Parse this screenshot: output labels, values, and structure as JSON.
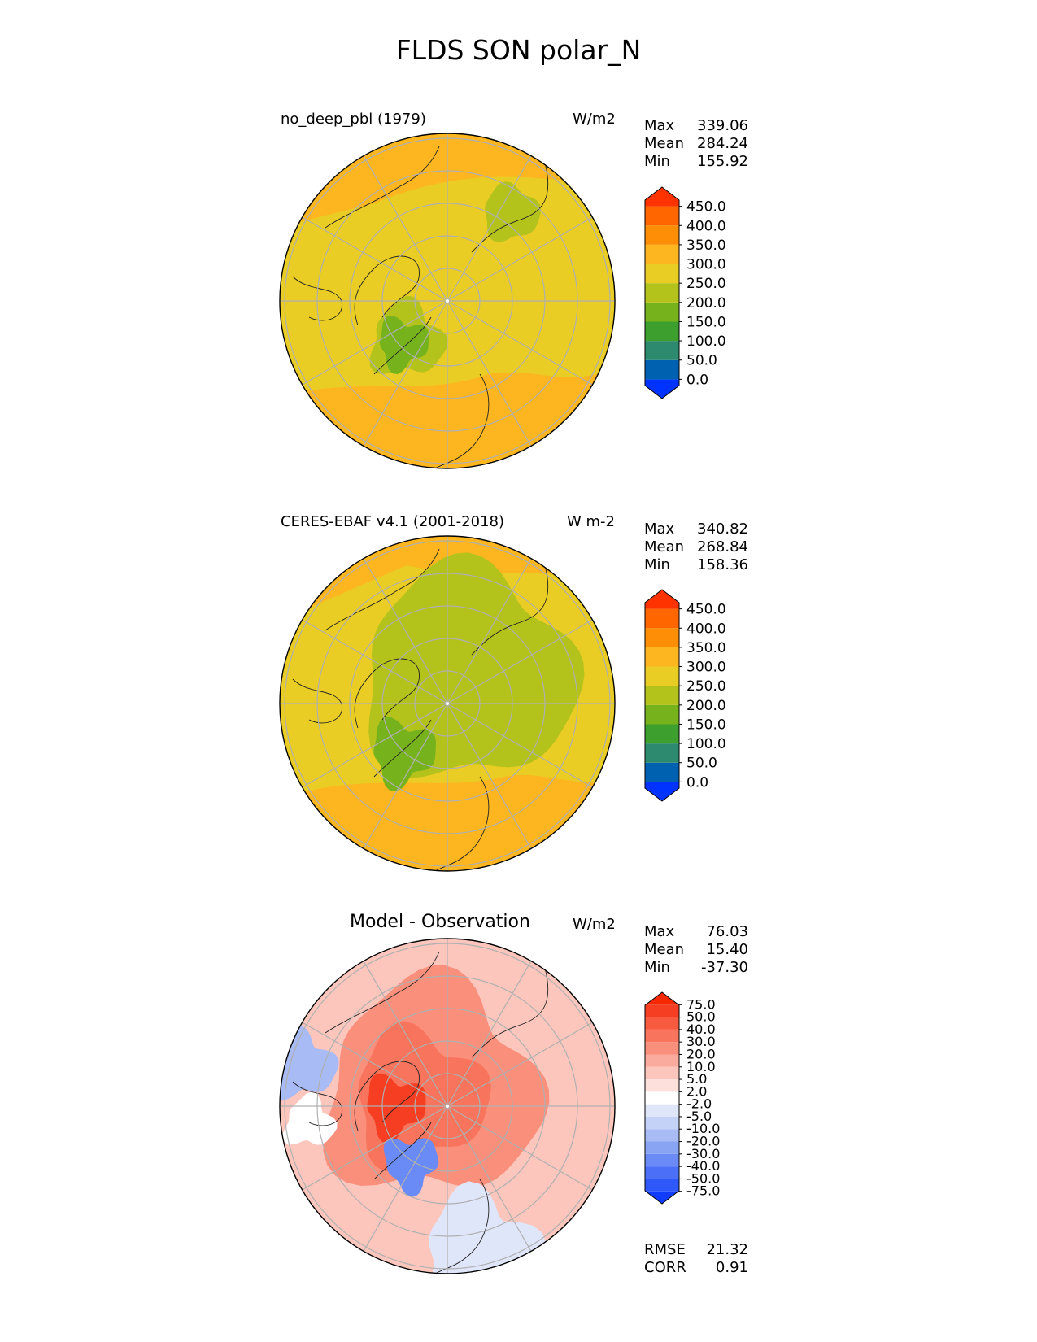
{
  "title": "FLDS SON polar_N",
  "chart_data": [
    {
      "type": "heatmap",
      "title": "no_deep_pbl (1979)",
      "units": "W/m2",
      "stats": [
        {
          "label": "Max",
          "value": "339.06"
        },
        {
          "label": "Mean",
          "value": "284.24"
        },
        {
          "label": "Min",
          "value": "155.92"
        }
      ],
      "colorbar": {
        "levels": [
          "0.0",
          "50.0",
          "100.0",
          "150.0",
          "200.0",
          "250.0",
          "300.0",
          "350.0",
          "400.0",
          "450.0"
        ],
        "colors": [
          "#0033ff",
          "#0061b0",
          "#2e8a6e",
          "#3da02e",
          "#76b21c",
          "#b4c21c",
          "#e9cd24",
          "#fdb620",
          "#fe8e05",
          "#ff6600",
          "#ff3300"
        ],
        "extend": "both"
      }
    },
    {
      "type": "heatmap",
      "title": "CERES-EBAF v4.1 (2001-2018)",
      "units": "W m-2",
      "stats": [
        {
          "label": "Max",
          "value": "340.82"
        },
        {
          "label": "Mean",
          "value": "268.84"
        },
        {
          "label": "Min",
          "value": "158.36"
        }
      ],
      "colorbar": {
        "levels": [
          "0.0",
          "50.0",
          "100.0",
          "150.0",
          "200.0",
          "250.0",
          "300.0",
          "350.0",
          "400.0",
          "450.0"
        ],
        "colors": [
          "#0033ff",
          "#0061b0",
          "#2e8a6e",
          "#3da02e",
          "#76b21c",
          "#b4c21c",
          "#e9cd24",
          "#fdb620",
          "#fe8e05",
          "#ff6600",
          "#ff3300"
        ],
        "extend": "both"
      }
    },
    {
      "type": "heatmap",
      "title": "Model - Observation",
      "units": "W/m2",
      "stats": [
        {
          "label": "Max",
          "value": "76.03"
        },
        {
          "label": "Mean",
          "value": "15.40"
        },
        {
          "label": "Min",
          "value": "-37.30"
        }
      ],
      "colorbar": {
        "levels": [
          "-75.0",
          "-50.0",
          "-40.0",
          "-30.0",
          "-20.0",
          "-10.0",
          "-5.0",
          "-2.0",
          "2.0",
          "5.0",
          "10.0",
          "20.0",
          "30.0",
          "40.0",
          "50.0",
          "75.0"
        ],
        "colors": [
          "#0f3cff",
          "#2f58fb",
          "#4b70f7",
          "#6a8af5",
          "#8aa4f4",
          "#a8bbf5",
          "#c5d2f7",
          "#e0e6fa",
          "#ffffff",
          "#fde0db",
          "#fcc6bd",
          "#fbab9d",
          "#fa8f7c",
          "#f8745c",
          "#f75a3e",
          "#f53e22",
          "#f52800"
        ],
        "extend": "both"
      },
      "extra_stats": [
        {
          "label": "RMSE",
          "value": "21.32"
        },
        {
          "label": "CORR",
          "value": "0.91"
        }
      ]
    }
  ]
}
